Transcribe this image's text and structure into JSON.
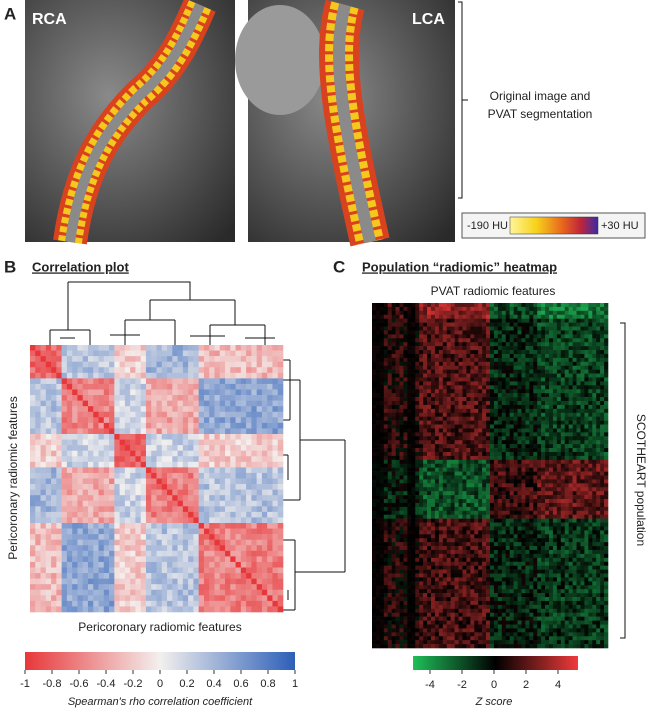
{
  "panel_a": {
    "label": "A",
    "left_image_label": "RCA",
    "right_image_label": "LCA",
    "caption": [
      "Original image and",
      "PVAT segmentation"
    ],
    "scale_min": "-190 HU",
    "scale_max": "+30 HU"
  },
  "panel_b": {
    "label": "B",
    "title": "Correlation plot",
    "y_axis_label": "Pericoronary radiomic features",
    "x_axis_label": "Pericoronary radiomic features",
    "colorbar_ticks": [
      -1,
      -0.8,
      -0.6,
      -0.4,
      -0.2,
      0,
      0.2,
      0.4,
      0.6,
      0.8,
      1
    ],
    "colorbar_label": "Spearman's rho correlation coefficient"
  },
  "panel_c": {
    "label": "C",
    "title": "Population “radiomic” heatmap",
    "column_label": "PVAT radiomic features",
    "row_label": "SCOTHEART population",
    "colorbar_ticks": [
      -4,
      -2,
      0,
      2,
      4
    ],
    "colorbar_label": "Z score"
  }
}
